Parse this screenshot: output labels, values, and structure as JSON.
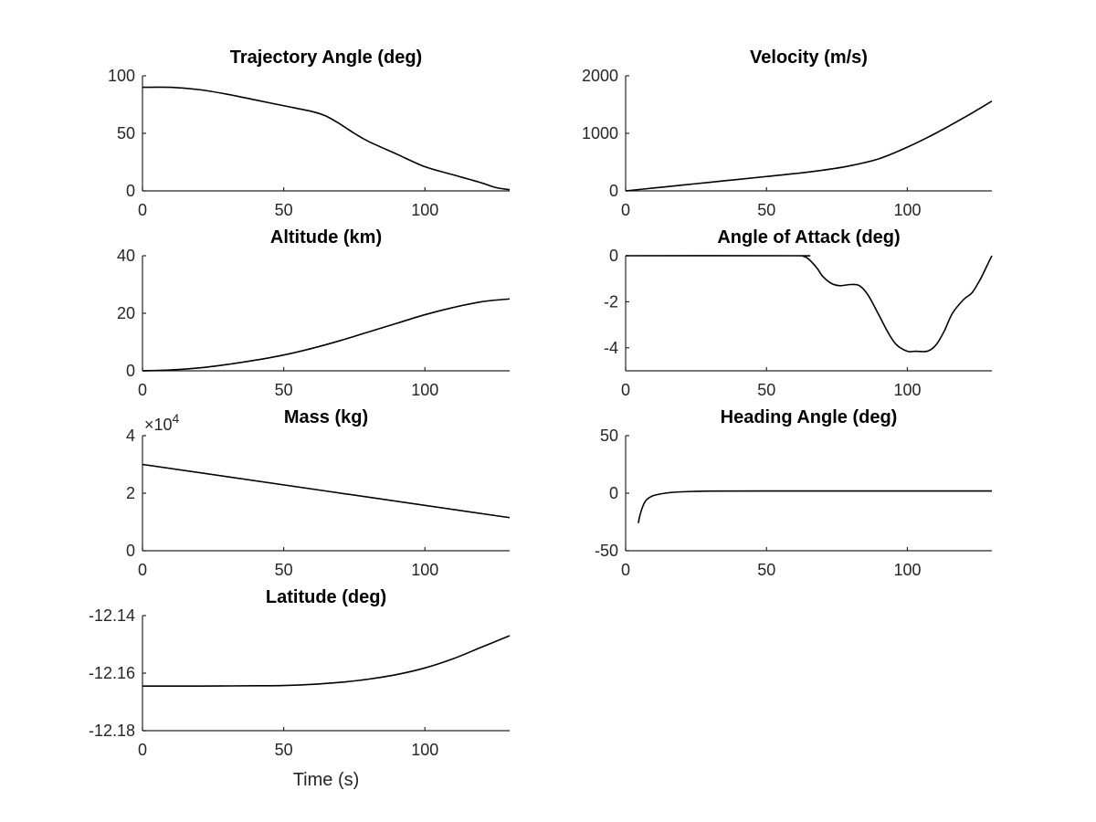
{
  "chart_data": [
    {
      "id": "trajectory",
      "type": "line",
      "title": "Trajectory Angle (deg)",
      "xlabel": "",
      "ylabel": "",
      "xlim": [
        0,
        130
      ],
      "ylim": [
        0,
        100
      ],
      "xticks": [
        0,
        50,
        100
      ],
      "yticks": [
        0,
        50,
        100
      ],
      "ytick_labels": [
        "0",
        "50",
        "100"
      ],
      "series": [
        {
          "x": [
            0,
            10,
            20,
            30,
            40,
            50,
            60,
            65,
            70,
            75,
            80,
            90,
            100,
            110,
            120,
            125,
            130
          ],
          "y": [
            90,
            90,
            88,
            84,
            79,
            74,
            69,
            65,
            58,
            50,
            43,
            32,
            21,
            14,
            7,
            3,
            1
          ]
        }
      ]
    },
    {
      "id": "velocity",
      "type": "line",
      "title": "Velocity (m/s)",
      "xlabel": "",
      "ylabel": "",
      "xlim": [
        0,
        130
      ],
      "ylim": [
        0,
        2000
      ],
      "xticks": [
        0,
        50,
        100
      ],
      "yticks": [
        0,
        1000,
        2000
      ],
      "ytick_labels": [
        "0",
        "1000",
        "2000"
      ],
      "series": [
        {
          "x": [
            0,
            10,
            20,
            30,
            40,
            50,
            60,
            70,
            80,
            90,
            100,
            110,
            120,
            130
          ],
          "y": [
            0,
            50,
            100,
            150,
            200,
            250,
            300,
            360,
            440,
            560,
            760,
            1000,
            1270,
            1560
          ]
        }
      ]
    },
    {
      "id": "altitude",
      "type": "line",
      "title": "Altitude (km)",
      "xlabel": "",
      "ylabel": "",
      "xlim": [
        0,
        130
      ],
      "ylim": [
        0,
        40
      ],
      "xticks": [
        0,
        50,
        100
      ],
      "yticks": [
        0,
        20,
        40
      ],
      "ytick_labels": [
        "0",
        "20",
        "40"
      ],
      "series": [
        {
          "x": [
            0,
            10,
            20,
            30,
            40,
            50,
            60,
            70,
            80,
            90,
            100,
            110,
            120,
            130
          ],
          "y": [
            0,
            0.3,
            1.0,
            2.2,
            3.7,
            5.5,
            7.8,
            10.5,
            13.5,
            16.5,
            19.5,
            22.0,
            24.0,
            25.0
          ]
        }
      ]
    },
    {
      "id": "aoa",
      "type": "line",
      "title": "Angle of Attack (deg)",
      "xlabel": "",
      "ylabel": "",
      "xlim": [
        0,
        130
      ],
      "ylim": [
        -5,
        0
      ],
      "xticks": [
        0,
        50,
        100
      ],
      "yticks": [
        -4,
        -2,
        0
      ],
      "ytick_labels": [
        "-4",
        "-2",
        "0"
      ],
      "series": [
        {
          "x": [
            0,
            60,
            63,
            65,
            68,
            70,
            73,
            76,
            80,
            83,
            86,
            90,
            93,
            96,
            100,
            103,
            107,
            110,
            113,
            116,
            120,
            123,
            126,
            128,
            130
          ],
          "y": [
            0,
            0,
            -0.02,
            -0.15,
            -0.55,
            -0.9,
            -1.2,
            -1.3,
            -1.25,
            -1.3,
            -1.7,
            -2.6,
            -3.3,
            -3.85,
            -4.15,
            -4.15,
            -4.15,
            -3.9,
            -3.3,
            -2.5,
            -1.9,
            -1.6,
            -1.0,
            -0.5,
            0
          ]
        }
      ]
    },
    {
      "id": "mass",
      "type": "line",
      "title": "Mass (kg)",
      "xlabel": "",
      "ylabel": "",
      "xlim": [
        0,
        130
      ],
      "ylim": [
        0,
        4
      ],
      "xticks": [
        0,
        50,
        100
      ],
      "yticks": [
        0,
        2,
        4
      ],
      "ytick_labels": [
        "0",
        "2",
        "4"
      ],
      "y_exponent_base": "×10",
      "y_exponent_power": "4",
      "series": [
        {
          "x": [
            0,
            130
          ],
          "y": [
            3.0,
            1.15
          ]
        }
      ]
    },
    {
      "id": "heading",
      "type": "line",
      "title": "Heading Angle (deg)",
      "xlabel": "",
      "ylabel": "",
      "xlim": [
        0,
        130
      ],
      "ylim": [
        -50,
        50
      ],
      "xticks": [
        0,
        50,
        100
      ],
      "yticks": [
        -50,
        0,
        50
      ],
      "ytick_labels": [
        "-50",
        "0",
        "50"
      ],
      "series": [
        {
          "x": [
            4.5,
            5,
            6,
            7,
            8,
            9,
            10,
            12,
            14,
            17,
            20,
            25,
            30,
            50,
            80,
            130
          ],
          "y": [
            -26,
            -20,
            -12,
            -7,
            -4.5,
            -3,
            -2,
            -0.8,
            0,
            0.8,
            1.2,
            1.6,
            1.8,
            1.9,
            1.9,
            1.9
          ]
        }
      ]
    },
    {
      "id": "latitude",
      "type": "line",
      "title": "Latitude (deg)",
      "xlabel": "Time (s)",
      "ylabel": "",
      "xlim": [
        0,
        130
      ],
      "ylim": [
        -12.18,
        -12.14
      ],
      "xticks": [
        0,
        50,
        100
      ],
      "yticks": [
        -12.18,
        -12.16,
        -12.14
      ],
      "ytick_labels": [
        "-12.18",
        "-12.16",
        "-12.14"
      ],
      "series": [
        {
          "x": [
            0,
            20,
            40,
            50,
            60,
            70,
            80,
            90,
            100,
            110,
            120,
            130
          ],
          "y": [
            -12.1645,
            -12.1645,
            -12.1644,
            -12.1643,
            -12.1639,
            -12.1632,
            -12.1621,
            -12.1605,
            -12.1582,
            -12.155,
            -12.151,
            -12.147
          ]
        }
      ]
    }
  ]
}
